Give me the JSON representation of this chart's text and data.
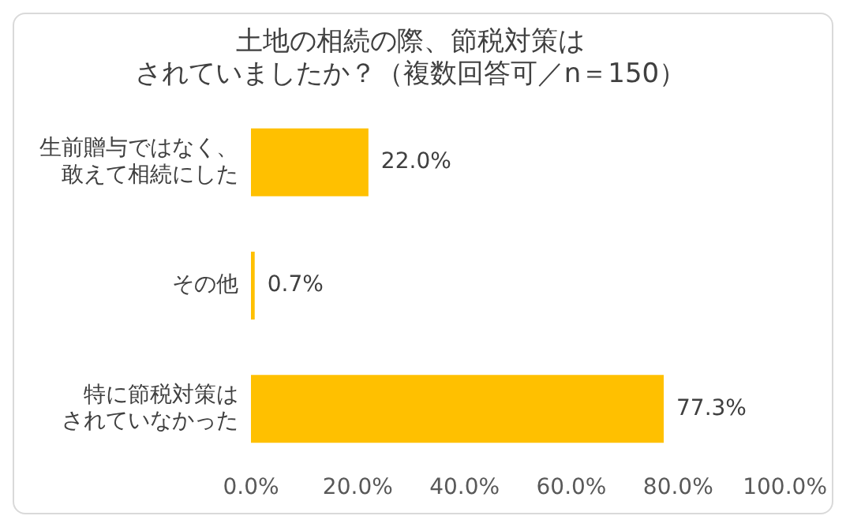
{
  "chart_data": {
    "type": "bar",
    "orientation": "horizontal",
    "title": "土地の相続の際、節税対策はされていましたか？（複数回答可／n＝150）",
    "categories": [
      "生前贈与ではなく、敢えて相続にした",
      "その他",
      "特に節税対策はされていなかった"
    ],
    "values": [
      22.0,
      0.7,
      77.3
    ],
    "color": "#ffc000",
    "value_labels": [
      "22.0%",
      "0.7%",
      "77.3%"
    ],
    "xlim": [
      0,
      100
    ],
    "xticks": [
      {
        "value": 0,
        "label": "0.0%"
      },
      {
        "value": 20,
        "label": "20.0%"
      },
      {
        "value": 40,
        "label": "40.0%"
      },
      {
        "value": 60,
        "label": "60.0%"
      },
      {
        "value": 80,
        "label": "80.0%"
      },
      {
        "value": 100,
        "label": "100.0%"
      }
    ],
    "grid": false,
    "legend": false
  }
}
